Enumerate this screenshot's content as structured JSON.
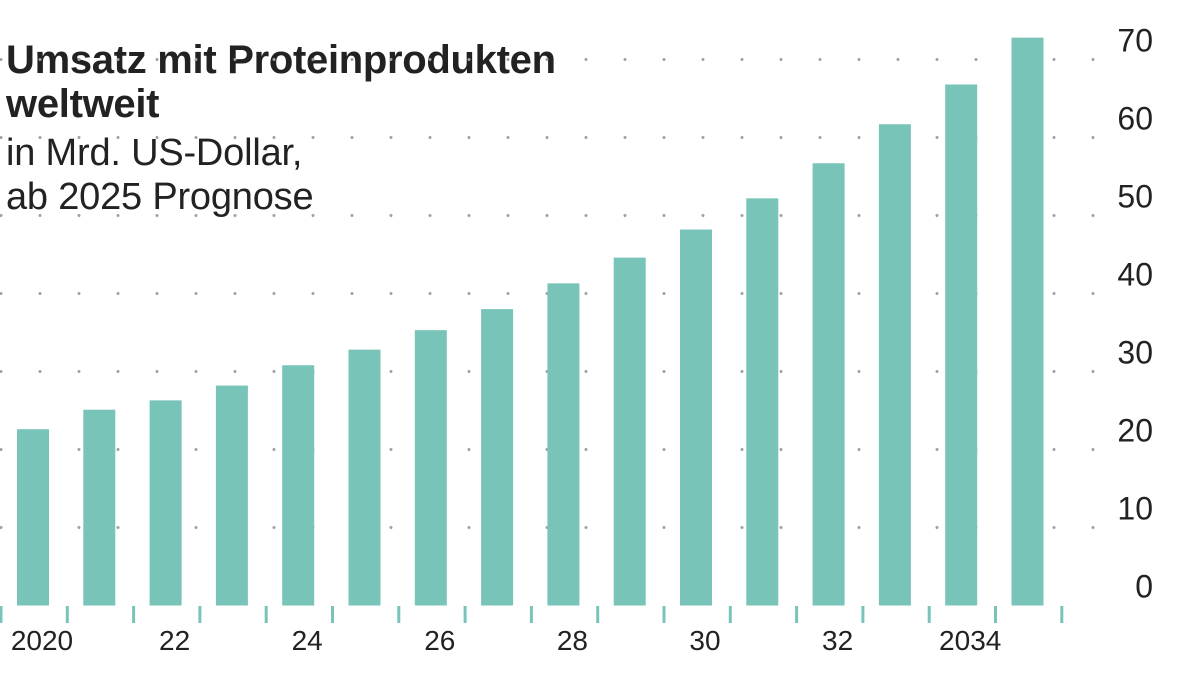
{
  "header": {
    "title_line1": "Umsatz mit Proteinprodukten",
    "title_line2": "weltweit",
    "subtitle_line1": "in Mrd. US-Dollar,",
    "subtitle_line2": "ab 2025 Prognose"
  },
  "colors": {
    "bar": "#78c4b9",
    "tick": "#78c4b9",
    "grid_dot": "#a0a0a0",
    "text": "#222222"
  },
  "chart_data": {
    "type": "bar",
    "title": "Umsatz mit Proteinprodukten weltweit",
    "subtitle": "in Mrd. US-Dollar, ab 2025 Prognose",
    "xlabel": "",
    "ylabel": "Mrd. US-Dollar",
    "categories": [
      "2020",
      "2021",
      "2022",
      "2023",
      "2024",
      "2025",
      "2026",
      "2027",
      "2028",
      "2029",
      "2030",
      "2031",
      "2032",
      "2033",
      "2034",
      "2035"
    ],
    "values": [
      22.6,
      25.1,
      26.3,
      28.2,
      30.8,
      32.8,
      35.3,
      38.0,
      41.3,
      44.6,
      48.2,
      52.2,
      56.7,
      61.7,
      66.8,
      72.8
    ],
    "x_tick_labels": [
      {
        "index": 0,
        "label": "2020"
      },
      {
        "index": 2,
        "label": "22"
      },
      {
        "index": 4,
        "label": "24"
      },
      {
        "index": 6,
        "label": "26"
      },
      {
        "index": 8,
        "label": "28"
      },
      {
        "index": 10,
        "label": "30"
      },
      {
        "index": 12,
        "label": "32"
      },
      {
        "index": 14,
        "label": "2034"
      }
    ],
    "y_ticks": [
      0,
      10,
      20,
      30,
      40,
      50,
      60,
      70
    ],
    "ylim": [
      0,
      75
    ],
    "y_axis_position": "right",
    "grid": "dotted horizontal",
    "legend": null
  }
}
